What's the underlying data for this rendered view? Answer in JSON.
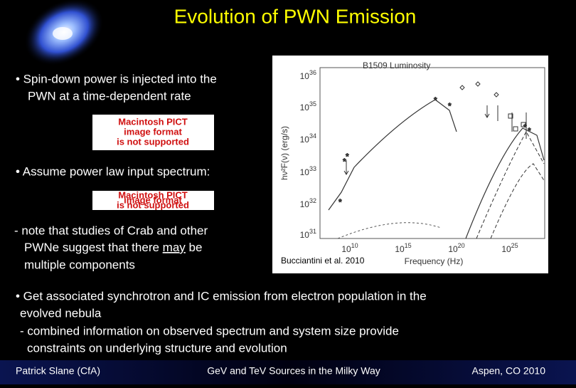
{
  "header": {
    "title": "Evolution of PWN Emission"
  },
  "left": {
    "bullet1": [
      "• Spin-down power is injected into the",
      "PWN at a time-dependent rate"
    ],
    "placeholder1": [
      "Macintosh PICT",
      "image format",
      "is not supported"
    ],
    "bullet2": "• Assume power law input spectrum:",
    "placeholder2": [
      "Macintosh PICT",
      "image format",
      "is not supported"
    ],
    "note": [
      "- note that studies of Crab and other",
      "PWNe suggest that there ",
      "may",
      " be",
      "multiple components"
    ]
  },
  "figure": {
    "title": "B1509  Luminosity",
    "y_label": "hν²F(ν) (erg/s)",
    "x_label": "Frequency (Hz)",
    "caption": "Bucciantini et al. 2010",
    "yticks": [
      {
        "base": "10",
        "exp": "36"
      },
      {
        "base": "10",
        "exp": "35"
      },
      {
        "base": "10",
        "exp": "34"
      },
      {
        "base": "10",
        "exp": "33"
      },
      {
        "base": "10",
        "exp": "32"
      },
      {
        "base": "10",
        "exp": "31"
      }
    ],
    "xticks": [
      {
        "base": "10",
        "exp": "10"
      },
      {
        "base": "10",
        "exp": "15"
      },
      {
        "base": "10",
        "exp": "20"
      },
      {
        "base": "10",
        "exp": "25"
      }
    ]
  },
  "bottom": [
    "• Get associated synchrotron and IC emission from electron population in the",
    "evolved nebula",
    "- combined information on observed spectrum and system size provide",
    "constraints on underlying structure and evolution"
  ],
  "footer": {
    "left": "Patrick Slane (CfA)",
    "center": "GeV and TeV Sources in the Milky Way",
    "right": "Aspen, CO 2010"
  }
}
